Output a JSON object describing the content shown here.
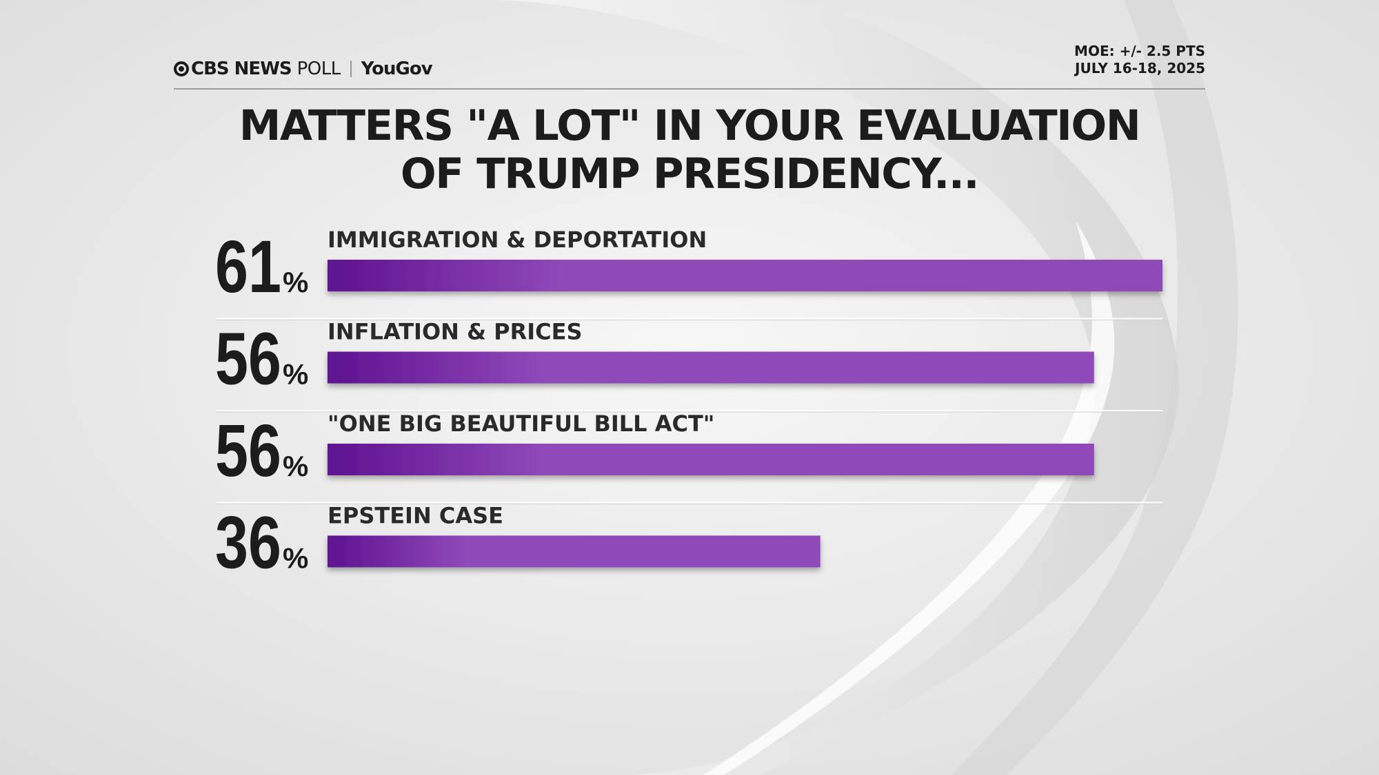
{
  "branding": {
    "outlet": "CBS NEWS",
    "poll": "POLL",
    "partner": "YouGov"
  },
  "moe": {
    "margin": "MOE: +/- 2.5 PTS",
    "dates": "JULY 16-18, 2025"
  },
  "colors": {
    "bar_dark": "#5e1290",
    "bar_light": "#8f48b8",
    "text": "#1c1c1c"
  },
  "chart_data": {
    "type": "bar",
    "orientation": "horizontal",
    "title": "MATTERS \"A LOT\" IN YOUR EVALUATION OF TRUMP PRESIDENCY...",
    "title_lines": [
      "MATTERS \"A LOT\" IN YOUR EVALUATION",
      "OF TRUMP PRESIDENCY..."
    ],
    "categories": [
      "IMMIGRATION & DEPORTATION",
      "INFLATION & PRICES",
      "\"ONE BIG BEAUTIFUL BILL ACT\"",
      "EPSTEIN CASE"
    ],
    "values": [
      61,
      56,
      56,
      36
    ],
    "value_labels": [
      "61",
      "56",
      "56",
      "36"
    ],
    "unit": "%",
    "xlim": [
      0,
      61
    ],
    "xlabel": "",
    "ylabel": ""
  }
}
